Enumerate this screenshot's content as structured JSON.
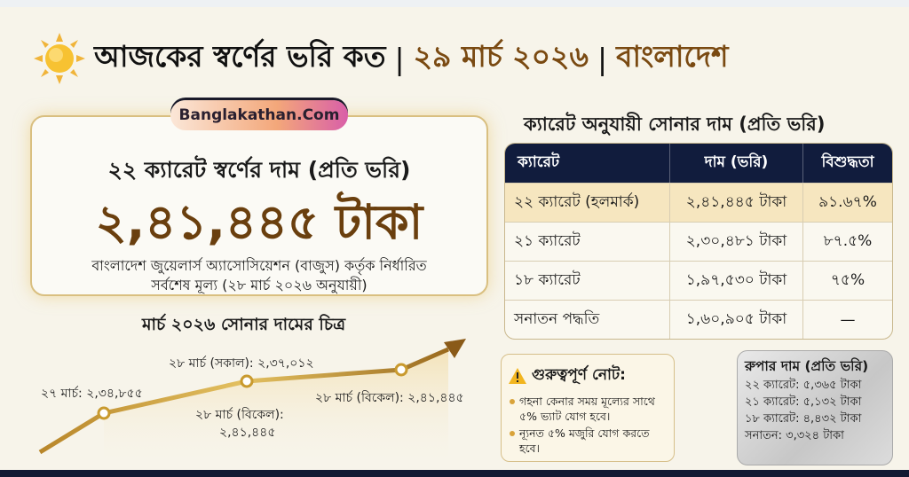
{
  "header": {
    "title_main": "আজকের স্বর্ণের ভরি কত",
    "separator": "|",
    "date": "২৯ মার্চ ২০২৬",
    "country": "বাংলাদেশ",
    "icon": "sun-icon"
  },
  "hero": {
    "badge": "Banglakathan.Com",
    "subtitle": "২২ ক্যারেট স্বর্ণের দাম (প্রতি ভরি)",
    "price": "২,৪১,৪৪৫ টাকা",
    "note_line1": "বাংলাদেশ জুয়েলার্স অ্যাসোসিয়েশন (বাজুস) কর্তৃক নির্ধারিত",
    "note_line2": "সর্বশেষ মূল্য (২৮ মার্চ ২০২৬ অনুযায়ী)"
  },
  "trend": {
    "title": "মার্চ ২০২৬ সোনার দামের চিত্র",
    "points": [
      {
        "label": "২৭ মার্চ: ২,৩৪,৮৫৫"
      },
      {
        "label": "২৮ মার্চ (সকাল): ২,৩৭,০১২"
      },
      {
        "label_line1": "২৮ মার্চ (বিকেল):",
        "label_line2": "২,৪১,৪৪৫"
      },
      {
        "label": "২৮ মার্চ (বিকেল): ২,৪১,৪৪৫"
      }
    ],
    "line_color": "#c99a2e"
  },
  "table": {
    "title": "ক্যারেট অনুযায়ী সোনার দাম (প্রতি ভরি)",
    "headers": [
      "ক্যারেট",
      "দাম (ভরি)",
      "বিশুদ্ধতা"
    ],
    "rows": [
      [
        "২২ ক্যারেট (হলমার্ক)",
        "২,৪১,৪৪৫ টাকা",
        "৯১.৬৭%"
      ],
      [
        "২১ ক্যারেট",
        "২,৩০,৪৮১ টাকা",
        "৮৭.৫%"
      ],
      [
        "১৮ ক্যারেট",
        "১,৯৭,৫৩০ টাকা",
        "৭৫%"
      ],
      [
        "সনাতন পদ্ধতি",
        "১,৬০,৯০৫ টাকা",
        "—"
      ]
    ],
    "header_color": "#111c3d",
    "highlight_color": "#f6e6bf"
  },
  "note": {
    "icon": "warning-icon",
    "title": "গুরুত্বপূর্ণ নোট:",
    "items": [
      "গহনা কেনার সময় মূল্যের সাথে ৫% ভ্যাট যোগ হবে।",
      "ন্যূনত ৫% মজুরি যোগ করতে হবে।"
    ]
  },
  "silver": {
    "title": "রুপার দাম (প্রতি ভরি)",
    "rows": [
      "২২ ক্যারেট: ৫,৩৬৫ টাকা",
      "২১ ক্যারেট: ৫,১৩২ টাকা",
      "১৮ ক্যারেট: ৪,৪৩২ টাকা",
      "সনাতন: ৩,৩২৪ টাকা"
    ]
  }
}
